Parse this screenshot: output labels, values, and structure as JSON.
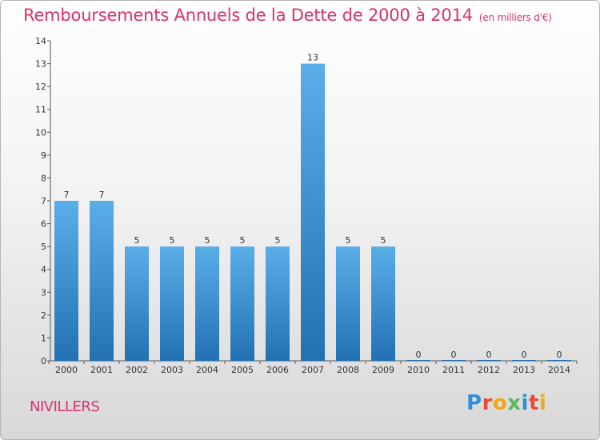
{
  "title": "Remboursements Annuels de la Dette de 2000 à 2014",
  "title_unit": "(en milliers d'€)",
  "commune": "NIVILLERS",
  "logo": {
    "letters": [
      "P",
      "r",
      "o",
      "x",
      "i",
      "t",
      "i"
    ],
    "colors": [
      "#2f8fd8",
      "#e94b35",
      "#f2a614",
      "#5cb85c",
      "#2f8fd8",
      "#e94b35",
      "#f2a614"
    ]
  },
  "colors": {
    "title": "#d9316e",
    "bar_light": "#5aaee8",
    "bar_dark": "#2271b3"
  },
  "chart_data": {
    "type": "bar",
    "categories": [
      "2000",
      "2001",
      "2002",
      "2003",
      "2004",
      "2005",
      "2006",
      "2007",
      "2008",
      "2009",
      "2010",
      "2011",
      "2012",
      "2013",
      "2014"
    ],
    "values": [
      7,
      7,
      5,
      5,
      5,
      5,
      5,
      13,
      5,
      5,
      0,
      0,
      0,
      0,
      0
    ],
    "title": "Remboursements Annuels de la Dette de 2000 à 2014",
    "xlabel": "",
    "ylabel": "",
    "ylim": [
      0,
      14
    ],
    "yticks": [
      0,
      1,
      2,
      3,
      4,
      5,
      6,
      7,
      8,
      9,
      10,
      11,
      12,
      13,
      14
    ],
    "grid": false,
    "data_labels": true
  }
}
